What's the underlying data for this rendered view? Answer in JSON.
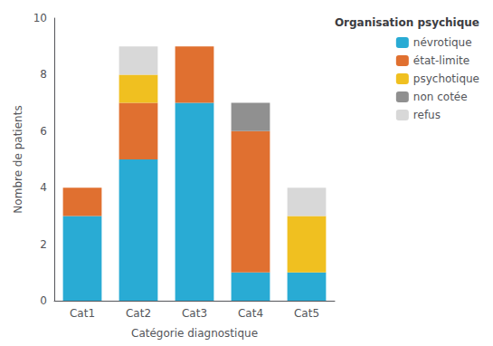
{
  "chart_data": {
    "type": "bar",
    "stacked": true,
    "categories": [
      "Cat1",
      "Cat2",
      "Cat3",
      "Cat4",
      "Cat5"
    ],
    "series": [
      {
        "name": "névrotique",
        "color": "#29ABD4",
        "values": [
          3,
          5,
          7,
          1,
          1
        ]
      },
      {
        "name": "état-limite",
        "color": "#E07030",
        "values": [
          1,
          2,
          2,
          5,
          0
        ]
      },
      {
        "name": "psychotique",
        "color": "#F0C020",
        "values": [
          0,
          1,
          0,
          0,
          2
        ]
      },
      {
        "name": "non cotée",
        "color": "#909090",
        "values": [
          0,
          0,
          0,
          1,
          0
        ]
      },
      {
        "name": "refus",
        "color": "#D8D8D8",
        "values": [
          0,
          1,
          0,
          0,
          1
        ]
      }
    ],
    "xlabel": "Catégorie diagnostique",
    "ylabel": "Nombre de patients",
    "legend_title": "Organisation psychique",
    "ylim": [
      0,
      10
    ],
    "yticks": [
      0,
      2,
      4,
      6,
      8,
      10
    ],
    "grid": false,
    "legend": "upper right"
  }
}
